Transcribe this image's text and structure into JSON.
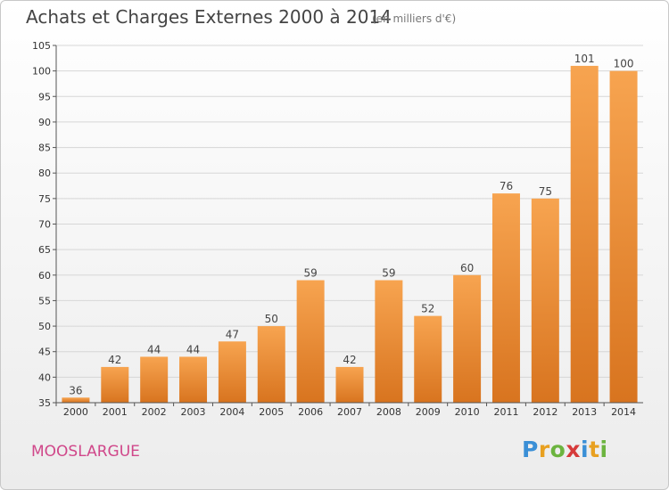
{
  "title": "Achats et Charges Externes 2000 à 2014",
  "subtitle": "(en milliers d'€)",
  "commune": "MOOSLARGUE",
  "logo": {
    "letters": [
      "P",
      "r",
      "o",
      "x",
      "i",
      "t",
      "i"
    ],
    "colors": [
      "#3a8fd6",
      "#e8a020",
      "#6cb43f",
      "#d63a3a",
      "#3a8fd6",
      "#e8a020",
      "#6cb43f"
    ]
  },
  "colors": {
    "bar_top": "#f7a450",
    "bar_bottom": "#d8741f",
    "grid": "#d6d6d6"
  },
  "chart_data": {
    "type": "bar",
    "categories": [
      "2000",
      "2001",
      "2002",
      "2003",
      "2004",
      "2005",
      "2006",
      "2007",
      "2008",
      "2009",
      "2010",
      "2011",
      "2012",
      "2013",
      "2014"
    ],
    "values": [
      36,
      42,
      44,
      44,
      47,
      50,
      59,
      42,
      59,
      52,
      60,
      76,
      75,
      101,
      100
    ],
    "ylim": [
      35,
      105
    ],
    "yticks": [
      35,
      40,
      45,
      50,
      55,
      60,
      65,
      70,
      75,
      80,
      85,
      90,
      95,
      100,
      105
    ],
    "grid": true
  }
}
